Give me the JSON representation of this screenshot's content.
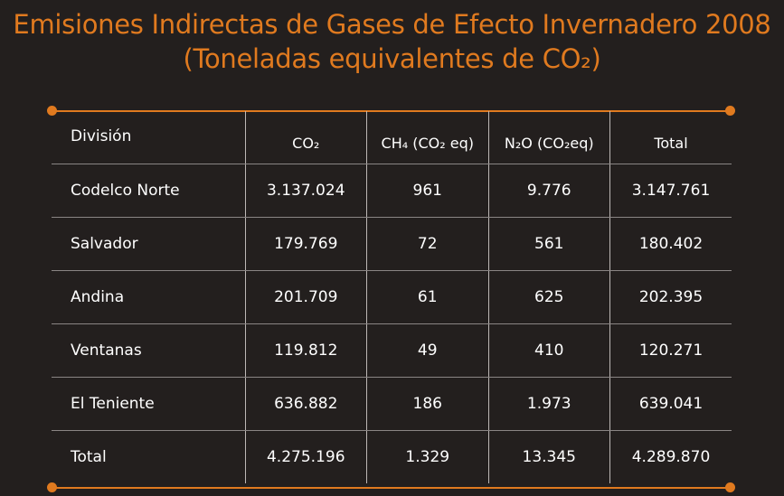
{
  "title": {
    "line1": "Emisiones Indirectas de Gases de Efecto Invernadero 2008",
    "line2": "(Toneladas equivalentes de CO₂)"
  },
  "colors": {
    "accent": "#e07a1f",
    "background": "#231f1e",
    "text": "#ffffff"
  },
  "table": {
    "headers": [
      "División",
      "CO₂",
      "CH₄ (CO₂ eq)",
      "N₂O (CO₂eq)",
      "Total"
    ],
    "rows": [
      [
        "Codelco Norte",
        "3.137.024",
        "961",
        "9.776",
        "3.147.761"
      ],
      [
        "Salvador",
        "179.769",
        "72",
        "561",
        "180.402"
      ],
      [
        "Andina",
        "201.709",
        "61",
        "625",
        "202.395"
      ],
      [
        "Ventanas",
        "119.812",
        "49",
        "410",
        "120.271"
      ],
      [
        "El Teniente",
        "636.882",
        "186",
        "1.973",
        "639.041"
      ],
      [
        "Total",
        "4.275.196",
        "1.329",
        "13.345",
        "4.289.870"
      ]
    ]
  }
}
